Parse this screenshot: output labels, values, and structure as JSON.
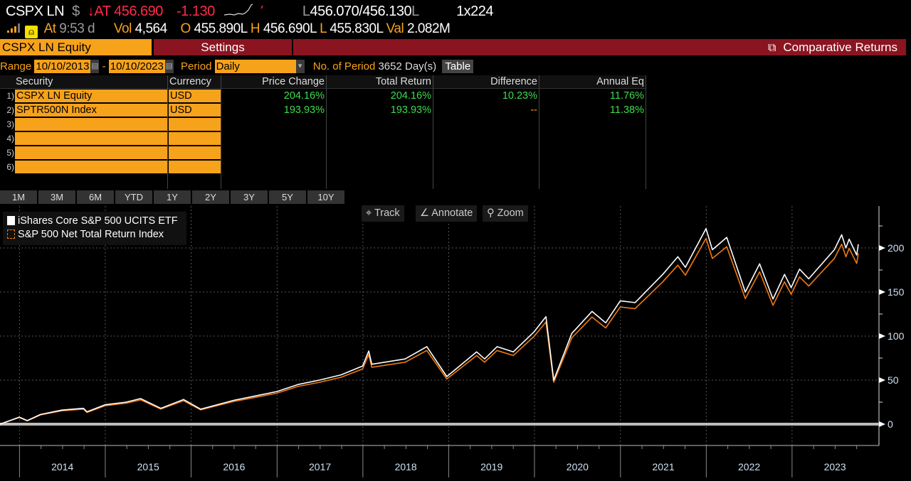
{
  "quote": {
    "ticker": "CSPX LN",
    "currency_symbol": "$",
    "direction_arrow": "↓",
    "at_label": "AT",
    "last_price": "456.690",
    "change": "-1.130",
    "bid": "456.070",
    "ask": "456.130",
    "bid_ask_sep": "/",
    "bid_suffix": "L",
    "size": "1x224",
    "time_label": "At",
    "time": "9:53 d",
    "vol_label": "Vol",
    "volume": "4,564",
    "open_label": "O",
    "open": "455.890L",
    "high_label": "H",
    "high": "456.690L",
    "low_label": "L",
    "low": "455.830L",
    "val_label": "Val",
    "value": "2.082M",
    "colors": {
      "down": "#ff2a4a",
      "label": "#f7a21b"
    }
  },
  "header": {
    "security": "CSPX LN Equity",
    "settings": "Settings",
    "function_title": "Comparative Returns",
    "function_icon": "external-link-icon"
  },
  "range": {
    "label": "Range",
    "start": "10/10/2013",
    "dash": "-",
    "end": "10/10/2023",
    "period_label": "Period",
    "period": "Daily",
    "num_label": "No. of Period",
    "num_value": "3652 Day(s)",
    "table_button": "Table"
  },
  "table": {
    "headers": [
      "Security",
      "Currency",
      "Price Change",
      "Total Return",
      "Difference",
      "Annual Eq"
    ],
    "rows": [
      {
        "num": "1)",
        "security": "CSPX LN Equity",
        "currency": "USD",
        "price_change": "204.16%",
        "total_return": "204.16%",
        "difference": "10.23%",
        "annual_eq": "11.76%"
      },
      {
        "num": "2)",
        "security": "SPTR500N Index",
        "currency": "USD",
        "price_change": "193.93%",
        "total_return": "193.93%",
        "difference": "--",
        "annual_eq": "11.38%"
      },
      {
        "num": "3)"
      },
      {
        "num": "4)"
      },
      {
        "num": "5)"
      },
      {
        "num": "6)"
      }
    ]
  },
  "periods": [
    "1M",
    "3M",
    "6M",
    "YTD",
    "1Y",
    "2Y",
    "3Y",
    "5Y",
    "10Y"
  ],
  "tools": {
    "track": "Track",
    "annotate": "Annotate",
    "zoom": "Zoom"
  },
  "chart_data": {
    "type": "line",
    "title": "",
    "xlabel": "",
    "ylabel": "",
    "x_ticks": [
      "2014",
      "2015",
      "2016",
      "2017",
      "2018",
      "2019",
      "2020",
      "2021",
      "2022",
      "2023"
    ],
    "y_ticks": [
      0,
      50,
      100,
      150,
      200
    ],
    "ylim": [
      -20,
      250
    ],
    "xlim": [
      "2013-10-10",
      "2023-10-10"
    ],
    "grid": true,
    "legend_position": "top-left",
    "dates": [
      "2013-10-10",
      "2013-12-31",
      "2014-02-03",
      "2014-03-31",
      "2014-06-30",
      "2014-09-30",
      "2014-10-15",
      "2014-12-31",
      "2015-03-31",
      "2015-05-31",
      "2015-08-25",
      "2015-11-30",
      "2016-02-11",
      "2016-06-30",
      "2016-09-30",
      "2016-12-31",
      "2017-03-31",
      "2017-06-30",
      "2017-09-30",
      "2017-12-31",
      "2018-01-26",
      "2018-02-08",
      "2018-06-30",
      "2018-09-30",
      "2018-12-24",
      "2019-04-30",
      "2019-06-03",
      "2019-07-26",
      "2019-10-03",
      "2019-12-31",
      "2020-02-19",
      "2020-03-23",
      "2020-06-08",
      "2020-09-02",
      "2020-10-30",
      "2020-12-31",
      "2021-03-04",
      "2021-06-30",
      "2021-09-02",
      "2021-10-04",
      "2021-12-31",
      "2022-01-27",
      "2022-03-29",
      "2022-06-16",
      "2022-08-16",
      "2022-10-12",
      "2022-11-30",
      "2022-12-28",
      "2023-02-02",
      "2023-03-13",
      "2023-06-30",
      "2023-07-31",
      "2023-08-18",
      "2023-09-01",
      "2023-10-03",
      "2023-10-10"
    ],
    "series": [
      {
        "name": "iShares Core S&P 500 UCITS ETF",
        "color": "#ffffff",
        "values": [
          0,
          8,
          4,
          11,
          16,
          18,
          14,
          22,
          25,
          29,
          18,
          28,
          17,
          27,
          32,
          37,
          45,
          50,
          56,
          66,
          83,
          68,
          74,
          88,
          54,
          82,
          74,
          88,
          82,
          105,
          122,
          50,
          103,
          128,
          115,
          140,
          138,
          170,
          190,
          178,
          222,
          198,
          212,
          150,
          182,
          142,
          170,
          155,
          176,
          165,
          198,
          215,
          200,
          210,
          192,
          204.16
        ]
      },
      {
        "name": "S&P 500 Net Total Return Index",
        "color": "#f07a10",
        "values": [
          0,
          7.6,
          3.8,
          10.5,
          15.2,
          17.1,
          13.3,
          20.9,
          23.8,
          27.6,
          17.1,
          26.6,
          16.2,
          25.7,
          30.4,
          35.2,
          42.8,
          47.5,
          53.2,
          62.7,
          78.9,
          64.6,
          70.3,
          83.6,
          51.3,
          77.9,
          70.3,
          83.6,
          77.9,
          99.8,
          115.9,
          47.5,
          97.9,
          121.6,
          109.3,
          133,
          131.1,
          161.5,
          180.5,
          169.1,
          210.9,
          188.1,
          201.4,
          142.5,
          172.9,
          134.9,
          161.5,
          147.3,
          167.2,
          156.8,
          188.1,
          204.3,
          190,
          199.5,
          182.4,
          193.93
        ]
      }
    ]
  }
}
